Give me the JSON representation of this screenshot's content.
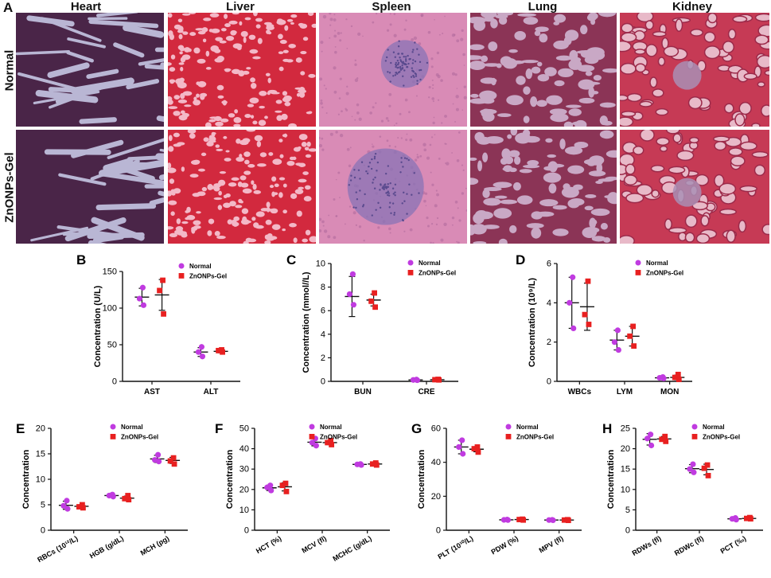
{
  "figure": {
    "panel_a": {
      "letter": "A"
    },
    "columns": [
      "Heart",
      "Liver",
      "Spleen",
      "Lung",
      "Kidney"
    ],
    "rows": [
      "Normal",
      "ZnONPs-Gel"
    ],
    "colors": {
      "heart_bg": "#b9b6d4",
      "heart_tissue": "#4a2548",
      "liver_bg": "#d2293e",
      "liver_spot": "#f3b8c7",
      "spleen_bg": "#d98bb6",
      "spleen_follicle": "#8873b5",
      "lung_bg": "#c9a8c5",
      "lung_tissue": "#8b3456",
      "kidney_bg": "#c63a55",
      "kidney_tubule": "#e8b9c8",
      "normal": "#c03be0",
      "gel": "#e82020"
    },
    "legend": {
      "normal": "Normal",
      "gel": "ZnONPs-Gel"
    }
  },
  "chart_data": [
    {
      "panel": "B",
      "type": "scatter",
      "ylabel": "Concentration (U/L)",
      "ylim": [
        0,
        150
      ],
      "yticks": [
        0,
        50,
        100,
        150
      ],
      "categories": [
        "AST",
        "ALT"
      ],
      "series": [
        {
          "name": "Normal",
          "points": [
            [
              128,
              113,
              104
            ],
            [
              47,
              40,
              34
            ]
          ],
          "mean": [
            115,
            40
          ],
          "sd": [
            12,
            6
          ]
        },
        {
          "name": "ZnONPs-Gel",
          "points": [
            [
              138,
              124,
              92
            ],
            [
              43,
              42,
              40
            ]
          ],
          "mean": [
            118,
            41
          ],
          "sd": [
            21,
            2
          ]
        }
      ]
    },
    {
      "panel": "C",
      "type": "scatter",
      "ylabel": "Concentration (mmol//L)",
      "ylim": [
        0,
        10
      ],
      "yticks": [
        0,
        2,
        4,
        6,
        8,
        10
      ],
      "categories": [
        "BUN",
        "CRE"
      ],
      "series": [
        {
          "name": "Normal",
          "points": [
            [
              9.1,
              7.4,
              6.5
            ],
            [
              0.15,
              0.12,
              0.1
            ]
          ],
          "mean": [
            7.2,
            0.12
          ],
          "sd": [
            1.7,
            0.03
          ]
        },
        {
          "name": "ZnONPs-Gel",
          "points": [
            [
              7.5,
              6.8,
              6.3
            ],
            [
              0.17,
              0.14,
              0.12
            ]
          ],
          "mean": [
            6.9,
            0.14
          ],
          "sd": [
            0.5,
            0.03
          ]
        }
      ]
    },
    {
      "panel": "D",
      "type": "scatter",
      "ylabel": "Concentration (10⁹/L)",
      "ylim": [
        0,
        6
      ],
      "yticks": [
        0,
        2,
        4,
        6
      ],
      "categories": [
        "WBCs",
        "LYM",
        "MON"
      ],
      "series": [
        {
          "name": "Normal",
          "points": [
            [
              5.3,
              4.0,
              2.7
            ],
            [
              2.6,
              2.0,
              1.6
            ],
            [
              0.22,
              0.18,
              0.15
            ]
          ],
          "mean": [
            4.0,
            2.1,
            0.18
          ],
          "sd": [
            1.3,
            0.5,
            0.04
          ]
        },
        {
          "name": "ZnONPs-Gel",
          "points": [
            [
              5.1,
              3.4,
              2.9
            ],
            [
              2.8,
              2.3,
              1.8
            ],
            [
              0.35,
              0.2,
              0.1
            ]
          ],
          "mean": [
            3.8,
            2.3,
            0.2
          ],
          "sd": [
            1.2,
            0.5,
            0.12
          ]
        }
      ]
    },
    {
      "panel": "E",
      "type": "scatter",
      "ylabel": "Concentration",
      "ylim": [
        0,
        20
      ],
      "yticks": [
        0,
        5,
        10,
        15,
        20
      ],
      "categories": [
        "RBCs (10¹²/L)",
        "HGB (g/dL)",
        "MCH (pg)"
      ],
      "series": [
        {
          "name": "Normal",
          "points": [
            [
              5.8,
              4.8,
              4.2
            ],
            [
              7.0,
              6.8,
              6.6
            ],
            [
              14.8,
              13.8,
              13.5
            ]
          ],
          "mean": [
            4.9,
            6.8,
            14.0
          ],
          "sd": [
            0.8,
            0.2,
            0.7
          ]
        },
        {
          "name": "ZnONPs-Gel",
          "points": [
            [
              5.0,
              4.6,
              4.4
            ],
            [
              6.8,
              6.2,
              6.0
            ],
            [
              14.2,
              13.6,
              13.0
            ]
          ],
          "mean": [
            4.7,
            6.3,
            13.7
          ],
          "sd": [
            0.3,
            0.4,
            0.6
          ]
        }
      ]
    },
    {
      "panel": "F",
      "type": "scatter",
      "ylabel": "Concentration",
      "ylim": [
        0,
        50
      ],
      "yticks": [
        0,
        10,
        20,
        30,
        40,
        50
      ],
      "categories": [
        "HCT (%)",
        "MCV (fl)",
        "MCHC (g/dL)"
      ],
      "series": [
        {
          "name": "Normal",
          "points": [
            [
              22,
              21,
              19.5
            ],
            [
              45,
              43,
              41.5
            ],
            [
              32.5,
              32.3,
              32.0
            ]
          ],
          "mean": [
            20.8,
            43.2,
            32.3
          ],
          "sd": [
            1.3,
            1.8,
            0.3
          ]
        },
        {
          "name": "ZnONPs-Gel",
          "points": [
            [
              23,
              22,
              19
            ],
            [
              44,
              43,
              42
            ],
            [
              33,
              32.5,
              32
            ]
          ],
          "mean": [
            21.3,
            43.0,
            32.5
          ],
          "sd": [
            2.0,
            1.0,
            0.5
          ]
        }
      ]
    },
    {
      "panel": "G",
      "type": "scatter",
      "ylabel": "Concentration",
      "ylim": [
        0,
        60
      ],
      "yticks": [
        0,
        20,
        40,
        60
      ],
      "categories": [
        "PLT (10¹⁰/L)",
        "PDW (%)",
        "MPV (fl)"
      ],
      "series": [
        {
          "name": "Normal",
          "points": [
            [
              53,
              49,
              45
            ],
            [
              6.3,
              6.1,
              6.0
            ],
            [
              6.1,
              6.0,
              5.9
            ]
          ],
          "mean": [
            49,
            6.1,
            6.0
          ],
          "sd": [
            4,
            0.2,
            0.1
          ]
        },
        {
          "name": "ZnONPs-Gel",
          "points": [
            [
              49,
              48,
              46
            ],
            [
              6.5,
              6.3,
              6.0
            ],
            [
              6.2,
              6.0,
              5.8
            ]
          ],
          "mean": [
            47.7,
            6.3,
            6.0
          ],
          "sd": [
            1.5,
            0.3,
            0.2
          ]
        }
      ]
    },
    {
      "panel": "H",
      "type": "scatter",
      "ylabel": "Concentration",
      "ylim": [
        0,
        25
      ],
      "yticks": [
        0,
        5,
        10,
        15,
        20,
        25
      ],
      "categories": [
        "RDWs (fl)",
        "RDWc (fl)",
        "PCT (‰)"
      ],
      "series": [
        {
          "name": "Normal",
          "points": [
            [
              23.5,
              22.5,
              20.8
            ],
            [
              16.2,
              15.0,
              14.2
            ],
            [
              3.0,
              2.8,
              2.6
            ]
          ],
          "mean": [
            22.3,
            15.1,
            2.8
          ],
          "sd": [
            1.4,
            1.0,
            0.2
          ]
        },
        {
          "name": "ZnONPs-Gel",
          "points": [
            [
              23,
              22.3,
              21.8
            ],
            [
              16,
              15.2,
              13.4
            ],
            [
              3.1,
              2.9,
              2.8
            ]
          ],
          "mean": [
            22.4,
            14.9,
            2.9
          ],
          "sd": [
            0.6,
            1.3,
            0.2
          ]
        }
      ]
    }
  ]
}
